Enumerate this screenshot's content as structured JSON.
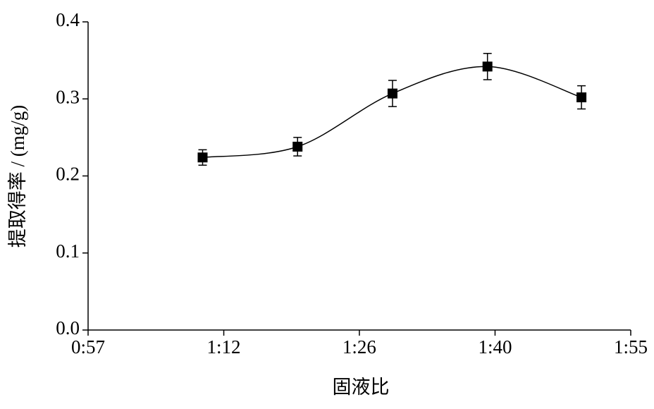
{
  "chart_data": {
    "type": "line",
    "x_label": "固液比",
    "y_label": "提取得率 / (mg/g)",
    "x": [
      69.2,
      79.2,
      89.2,
      99.2,
      109.1
    ],
    "series": [
      {
        "color": "#000000",
        "values": [
          0.224,
          0.238,
          0.307,
          0.342,
          0.302
        ],
        "errors": [
          0.01,
          0.012,
          0.017,
          0.017,
          0.015
        ]
      }
    ],
    "xlim": [
      57.14,
      114.29
    ],
    "xticks": [
      {
        "value": 57.14,
        "label": "0:57"
      },
      {
        "value": 71.43,
        "label": "1:12"
      },
      {
        "value": 85.71,
        "label": "1:26"
      },
      {
        "value": 100,
        "label": "1:40"
      },
      {
        "value": 114.29,
        "label": "1:55"
      }
    ],
    "ylim": [
      0,
      0.4
    ],
    "yticks": [
      {
        "value": 0,
        "label": "0.0"
      },
      0.1,
      0.2,
      0.3,
      0.4
    ],
    "grid": false
  }
}
